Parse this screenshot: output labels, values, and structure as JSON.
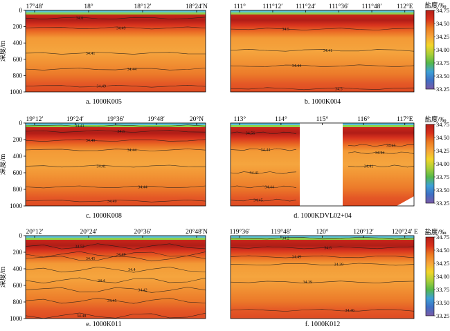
{
  "figure": {
    "ylabel": "深度/m",
    "colorbar_title": "盐度/‰",
    "colorbar_ticks": [
      "34.75",
      "34.50",
      "34.25",
      "34.00",
      "33.75",
      "33.50",
      "33.25"
    ],
    "colorbar_range": [
      33.25,
      34.75
    ],
    "colormap": [
      "#7b5aa6",
      "#3f6fc4",
      "#3ea0d6",
      "#55b84a",
      "#a9cf38",
      "#f2d52a",
      "#f7a53a",
      "#ec7a22",
      "#d8301c",
      "#b51f18"
    ]
  },
  "chart_data": [
    {
      "type": "heatmap",
      "caption": "a. 1000K005",
      "x_ticks": [
        "17°48′",
        "18°",
        "18°12′",
        "18°24′N"
      ],
      "y_ticks": [
        0,
        200,
        400,
        600,
        800,
        1000
      ],
      "ylim": [
        1000,
        0
      ],
      "contours": [
        {
          "label": "34.6",
          "depth": 95
        },
        {
          "label": "34.49",
          "depth": 215
        },
        {
          "label": "34.41",
          "depth": 525
        },
        {
          "label": "34.44",
          "depth": 720
        },
        {
          "label": "34.49",
          "depth": 930
        }
      ]
    },
    {
      "type": "heatmap",
      "caption": "b. 1000K004",
      "x_ticks": [
        "111°",
        "111°12′",
        "111°24′",
        "111°36′",
        "111°48′",
        "112°E"
      ],
      "y_ticks": [],
      "ylim": [
        1000,
        0
      ],
      "contours": [
        {
          "label": "34.5",
          "depth": 230
        },
        {
          "label": "34.41",
          "depth": 490
        },
        {
          "label": "34.44",
          "depth": 680
        },
        {
          "label": "34.5",
          "depth": 960
        }
      ]
    },
    {
      "type": "heatmap",
      "caption": "c. 1000K008",
      "x_ticks": [
        "19°12′",
        "19°24′",
        "19°36′",
        "19°48′",
        "20°N"
      ],
      "y_ticks": [
        0,
        200,
        400,
        600,
        800,
        1000
      ],
      "ylim": [
        1000,
        0
      ],
      "contours": [
        {
          "label": "34.41",
          "depth": 35
        },
        {
          "label": "34.6",
          "depth": 100
        },
        {
          "label": "34.49",
          "depth": 210
        },
        {
          "label": "34.44",
          "depth": 325
        },
        {
          "label": "34.41",
          "depth": 520
        },
        {
          "label": "34.44",
          "depth": 770
        },
        {
          "label": "34.49",
          "depth": 940
        }
      ]
    },
    {
      "type": "heatmap",
      "caption": "d. 1000KDVL02+04",
      "x_ticks": [
        "113°",
        "114°",
        "115°",
        "116°",
        "117°E"
      ],
      "y_ticks": [],
      "ylim": [
        1000,
        0
      ],
      "contours": [
        {
          "label": "34.56",
          "depth": 120
        },
        {
          "label": "34.44",
          "depth": 320
        },
        {
          "label": "34.41",
          "depth": 600
        },
        {
          "label": "34.44",
          "depth": 770
        },
        {
          "label": "34.45",
          "depth": 930
        },
        {
          "label": "34.45",
          "depth": 270
        },
        {
          "label": "34.44",
          "depth": 360
        },
        {
          "label": "34.41",
          "depth": 520
        }
      ]
    },
    {
      "type": "heatmap",
      "caption": "e. 1000K011",
      "x_ticks": [
        "20°12′",
        "20°24′",
        "20°36′",
        "20°48′N"
      ],
      "y_ticks": [
        0,
        200,
        400,
        600,
        800,
        1000
      ],
      "ylim": [
        1000,
        0
      ],
      "contours": [
        {
          "label": "34.52",
          "depth": 130
        },
        {
          "label": "34.49",
          "depth": 225
        },
        {
          "label": "34.45",
          "depth": 275
        },
        {
          "label": "34.4",
          "depth": 410
        },
        {
          "label": "34.4",
          "depth": 540
        },
        {
          "label": "34.42",
          "depth": 655
        },
        {
          "label": "34.45",
          "depth": 785
        },
        {
          "label": "34.48",
          "depth": 965
        }
      ]
    },
    {
      "type": "heatmap",
      "caption": "f. 1000K012",
      "x_ticks": [
        "119°36′",
        "119°48′",
        "120°",
        "120°12′",
        "120°24′ E"
      ],
      "y_ticks": [],
      "ylim": [
        1000,
        0
      ],
      "contours": [
        {
          "label": "34.2",
          "depth": 30
        },
        {
          "label": "34.6",
          "depth": 145
        },
        {
          "label": "34.49",
          "depth": 255
        },
        {
          "label": "34.39",
          "depth": 345
        },
        {
          "label": "34.39",
          "depth": 560
        },
        {
          "label": "34.46",
          "depth": 900
        }
      ]
    }
  ]
}
